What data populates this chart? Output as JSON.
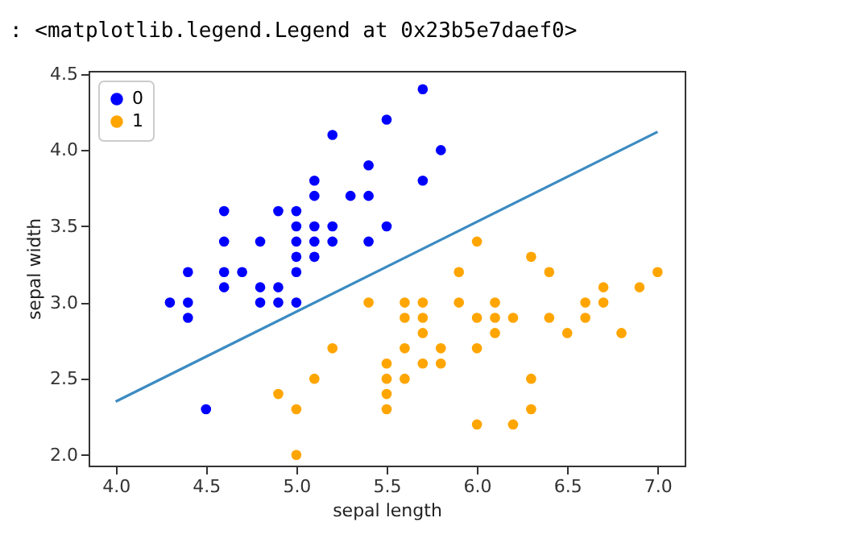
{
  "chart_data": {
    "type": "scatter",
    "xlabel": "sepal length",
    "ylabel": "sepal width",
    "annotations": [
      ": <matplotlib.legend.Legend at 0x23b5e7daef0>"
    ],
    "xlim": [
      3.85,
      7.15
    ],
    "ylim": [
      1.93,
      4.52
    ],
    "xticks": [
      {
        "value": 4,
        "label": "4.0"
      },
      4.5,
      {
        "value": 5,
        "label": "5.0"
      },
      5.5,
      {
        "value": 6,
        "label": "6.0"
      },
      6.5,
      {
        "value": 7,
        "label": "7.0"
      }
    ],
    "yticks": [
      {
        "value": 2,
        "label": "2.0"
      },
      2.5,
      {
        "value": 3,
        "label": "3.0"
      },
      3.5,
      {
        "value": 4,
        "label": "4.0"
      },
      4.5
    ],
    "grid": false,
    "legend": "top left",
    "marker": "circle",
    "series": [
      {
        "name": "0",
        "color": "#0000ff",
        "x": [
          4.3,
          4.4,
          4.4,
          4.4,
          4.5,
          4.6,
          4.6,
          4.6,
          4.6,
          4.7,
          4.8,
          4.8,
          4.8,
          4.9,
          4.9,
          4.9,
          5.0,
          5.0,
          5.0,
          5.0,
          5.0,
          5.0,
          5.1,
          5.1,
          5.1,
          5.1,
          5.1,
          5.2,
          5.2,
          5.2,
          5.3,
          5.4,
          5.4,
          5.4,
          5.5,
          5.5,
          5.7,
          5.7,
          5.8
        ],
        "values": [
          3.0,
          3.0,
          2.9,
          3.2,
          2.3,
          3.1,
          3.2,
          3.4,
          3.6,
          3.2,
          3.0,
          3.1,
          3.4,
          3.0,
          3.1,
          3.6,
          3.0,
          3.2,
          3.3,
          3.4,
          3.5,
          3.6,
          3.3,
          3.4,
          3.5,
          3.7,
          3.8,
          3.4,
          3.5,
          4.1,
          3.7,
          3.4,
          3.7,
          3.9,
          3.5,
          4.2,
          3.8,
          4.4,
          4.0
        ]
      },
      {
        "name": "1",
        "color": "#ffa500",
        "x": [
          4.9,
          5.0,
          5.0,
          5.1,
          5.2,
          5.4,
          5.5,
          5.5,
          5.5,
          5.5,
          5.6,
          5.6,
          5.6,
          5.6,
          5.7,
          5.7,
          5.7,
          5.7,
          5.8,
          5.8,
          5.9,
          5.9,
          6.0,
          6.0,
          6.0,
          6.0,
          6.1,
          6.1,
          6.1,
          6.2,
          6.2,
          6.3,
          6.3,
          6.3,
          6.4,
          6.4,
          6.5,
          6.6,
          6.6,
          6.7,
          6.7,
          6.8,
          6.9,
          7.0
        ],
        "values": [
          2.4,
          2.0,
          2.3,
          2.5,
          2.7,
          3.0,
          2.3,
          2.4,
          2.5,
          2.6,
          2.5,
          2.7,
          2.9,
          3.0,
          2.6,
          2.8,
          2.9,
          3.0,
          2.6,
          2.7,
          3.0,
          3.2,
          2.2,
          2.7,
          2.9,
          3.4,
          2.8,
          2.9,
          3.0,
          2.2,
          2.9,
          2.3,
          2.5,
          3.3,
          2.9,
          3.2,
          2.8,
          2.9,
          3.0,
          3.0,
          3.1,
          2.8,
          3.1,
          3.2
        ]
      },
      {
        "type": "line",
        "marker": "none",
        "color": "#3b8bc2",
        "x": [
          4.0,
          7.0
        ],
        "values": [
          2.35,
          4.12
        ]
      }
    ]
  }
}
